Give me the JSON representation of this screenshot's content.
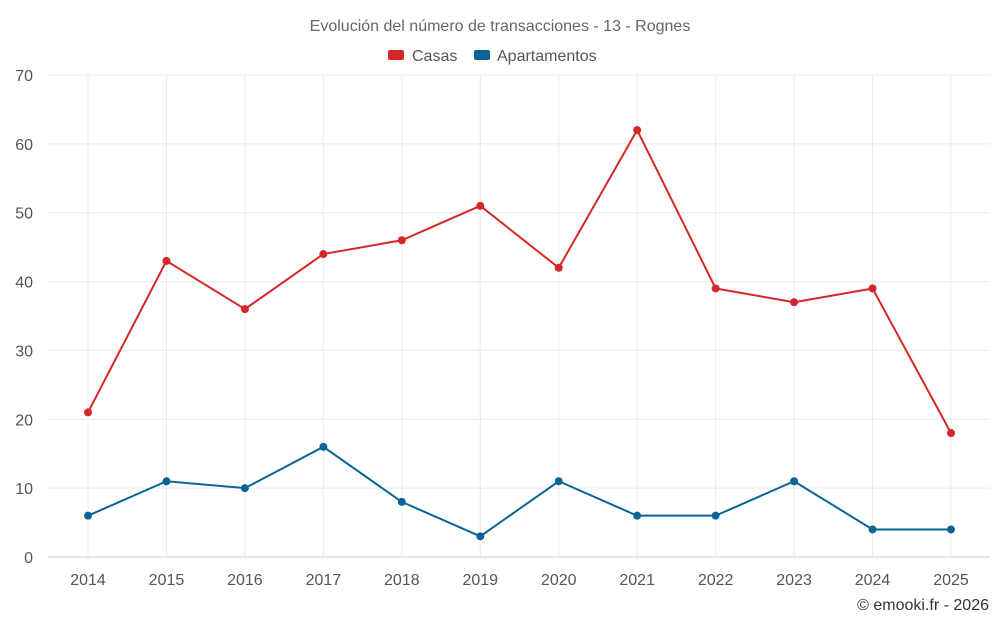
{
  "chart_data": {
    "type": "line",
    "title": "Evolución del número de transacciones - 13 - Rognes",
    "categories": [
      "2014",
      "2015",
      "2016",
      "2017",
      "2018",
      "2019",
      "2020",
      "2021",
      "2022",
      "2023",
      "2024",
      "2025"
    ],
    "series": [
      {
        "name": "Casas",
        "color": "#d62728",
        "values": [
          21,
          43,
          36,
          44,
          46,
          51,
          42,
          62,
          39,
          37,
          39,
          18
        ]
      },
      {
        "name": "Apartamentos",
        "color": "#0a6496",
        "values": [
          6,
          11,
          10,
          16,
          8,
          3,
          11,
          6,
          6,
          11,
          4,
          4
        ]
      }
    ],
    "ylim": [
      0,
      70
    ],
    "yticks": [
      0,
      10,
      20,
      30,
      40,
      50,
      60,
      70
    ],
    "grid": true,
    "legend_position": "top-center",
    "xlabel": "",
    "ylabel": ""
  },
  "credit": "© emooki.fr - 2026"
}
